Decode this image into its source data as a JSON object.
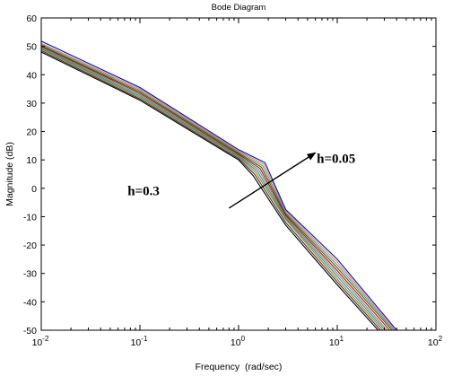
{
  "chart_data": {
    "type": "line",
    "title": "Bode Diagram",
    "xlabel": "Frequency  (rad/sec)",
    "ylabel": "Magnitude (dB)",
    "xscale": "log",
    "xlim": [
      0.01,
      100
    ],
    "ylim": [
      -50,
      60
    ],
    "grid": false,
    "x_ticks": [
      {
        "value": 0.01,
        "base": "10",
        "exp": "-2"
      },
      {
        "value": 0.1,
        "base": "10",
        "exp": "-1"
      },
      {
        "value": 1,
        "base": "10",
        "exp": "0"
      },
      {
        "value": 10,
        "base": "10",
        "exp": "1"
      },
      {
        "value": 100,
        "base": "10",
        "exp": "2"
      }
    ],
    "y_ticks": [
      -50,
      -40,
      -30,
      -20,
      -10,
      0,
      10,
      20,
      30,
      40,
      50,
      60
    ],
    "series": [
      {
        "color": "#000000",
        "points": [
          [
            0.01,
            48
          ],
          [
            0.1,
            31
          ],
          [
            1,
            10.0
          ],
          [
            1.4,
            4.5
          ],
          [
            3,
            -13
          ],
          [
            10,
            -34
          ],
          [
            26,
            -50
          ]
        ]
      },
      {
        "color": "#333333",
        "points": [
          [
            0.01,
            48.5
          ],
          [
            0.1,
            31.5
          ],
          [
            1,
            10.5
          ],
          [
            1.45,
            5
          ],
          [
            3,
            -12
          ],
          [
            10,
            -33
          ],
          [
            27.5,
            -50
          ]
        ]
      },
      {
        "color": "#cc6600",
        "points": [
          [
            0.01,
            49
          ],
          [
            0.1,
            32
          ],
          [
            1,
            11.0
          ],
          [
            1.5,
            5.5
          ],
          [
            3,
            -11
          ],
          [
            10,
            -32
          ],
          [
            29,
            -50
          ]
        ]
      },
      {
        "color": "#00a0a0",
        "points": [
          [
            0.01,
            49.3
          ],
          [
            0.1,
            32.5
          ],
          [
            1,
            11.3
          ],
          [
            1.55,
            6
          ],
          [
            3,
            -10.5
          ],
          [
            10,
            -31
          ],
          [
            30.5,
            -50
          ]
        ]
      },
      {
        "color": "#808080",
        "points": [
          [
            0.01,
            49.6
          ],
          [
            0.1,
            33
          ],
          [
            1,
            11.6
          ],
          [
            1.6,
            6.5
          ],
          [
            3,
            -10
          ],
          [
            10,
            -30
          ],
          [
            32,
            -50
          ]
        ]
      },
      {
        "color": "#cc0000",
        "points": [
          [
            0.01,
            50
          ],
          [
            0.1,
            33.5
          ],
          [
            1,
            12.0
          ],
          [
            1.65,
            7
          ],
          [
            3,
            -9.5
          ],
          [
            10,
            -29
          ],
          [
            34,
            -50
          ]
        ]
      },
      {
        "color": "#008000",
        "points": [
          [
            0.01,
            50.3
          ],
          [
            0.1,
            34
          ],
          [
            1,
            12.4
          ],
          [
            1.7,
            7.5
          ],
          [
            3,
            -9
          ],
          [
            10,
            -28
          ],
          [
            36,
            -50
          ]
        ]
      },
      {
        "color": "#9966cc",
        "points": [
          [
            0.01,
            50.7
          ],
          [
            0.1,
            34.5
          ],
          [
            1,
            12.8
          ],
          [
            1.75,
            8
          ],
          [
            3,
            -8.5
          ],
          [
            10,
            -27
          ],
          [
            37.5,
            -50
          ]
        ]
      },
      {
        "color": "#c8a000",
        "points": [
          [
            0.01,
            51.1
          ],
          [
            0.1,
            35
          ],
          [
            1,
            13.2
          ],
          [
            1.8,
            8.5
          ],
          [
            3,
            -8
          ],
          [
            10,
            -26
          ],
          [
            38.5,
            -50
          ]
        ]
      },
      {
        "color": "#0000ff",
        "points": [
          [
            0.01,
            51.8
          ],
          [
            0.1,
            35.5
          ],
          [
            1,
            13.6
          ],
          [
            1.85,
            9
          ],
          [
            3,
            -7.5
          ],
          [
            10,
            -25
          ],
          [
            40,
            -50
          ]
        ]
      }
    ],
    "annotations": [
      {
        "text": "h=0.3",
        "x": 0.075,
        "y": -2.5
      },
      {
        "text": "h=0.05",
        "x": 6.2,
        "y": 9
      }
    ],
    "arrow": {
      "from": [
        0.8,
        -7
      ],
      "to": [
        6.0,
        12.5
      ]
    }
  }
}
